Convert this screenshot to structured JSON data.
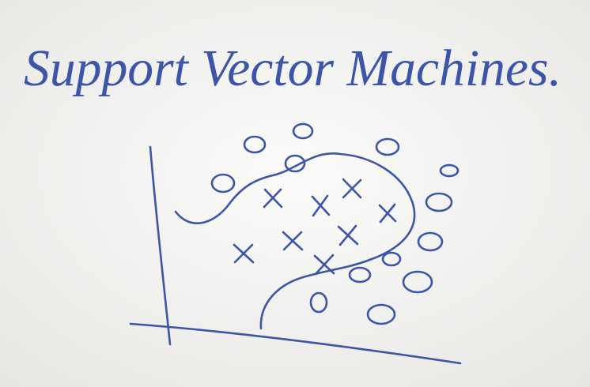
{
  "title": "Support Vector Machines."
}
